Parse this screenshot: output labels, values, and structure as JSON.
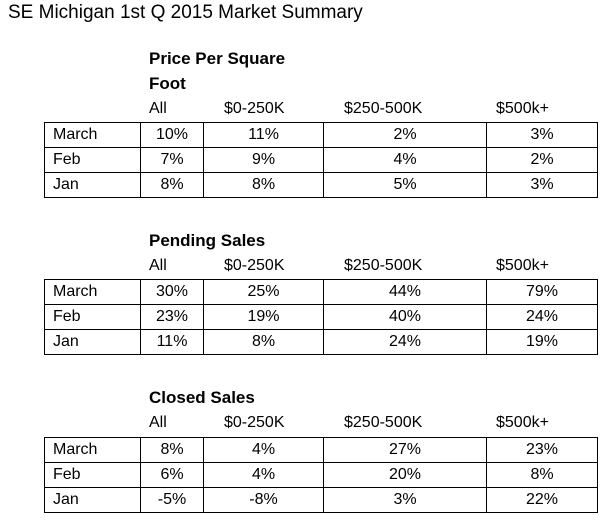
{
  "title": "SE Michigan 1st Q 2015 Market Summary",
  "sections": [
    {
      "title": "Price Per Square Foot",
      "columns": [
        "All",
        "$0-250K",
        "$250-500K",
        "$500k+"
      ],
      "rows": [
        {
          "label": "March",
          "values": [
            "10%",
            "11%",
            "2%",
            "3%"
          ]
        },
        {
          "label": "Feb",
          "values": [
            "7%",
            "9%",
            "4%",
            "2%"
          ]
        },
        {
          "label": "Jan",
          "values": [
            "8%",
            "8%",
            "5%",
            "3%"
          ]
        }
      ]
    },
    {
      "title": "Pending Sales",
      "columns": [
        "All",
        "$0-250K",
        "$250-500K",
        "$500k+"
      ],
      "rows": [
        {
          "label": "March",
          "values": [
            "30%",
            "25%",
            "44%",
            "79%"
          ]
        },
        {
          "label": "Feb",
          "values": [
            "23%",
            "19%",
            "40%",
            "24%"
          ]
        },
        {
          "label": "Jan",
          "values": [
            "11%",
            "8%",
            "24%",
            "19%"
          ]
        }
      ]
    },
    {
      "title": "Closed Sales",
      "columns": [
        "All",
        "$0-250K",
        "$250-500K",
        "$500k+"
      ],
      "rows": [
        {
          "label": "March",
          "values": [
            "8%",
            "4%",
            "27%",
            "23%"
          ]
        },
        {
          "label": "Feb",
          "values": [
            "6%",
            "4%",
            "20%",
            "8%"
          ]
        },
        {
          "label": "Jan",
          "values": [
            "-5%",
            "-8%",
            "3%",
            "22%"
          ]
        }
      ]
    }
  ]
}
